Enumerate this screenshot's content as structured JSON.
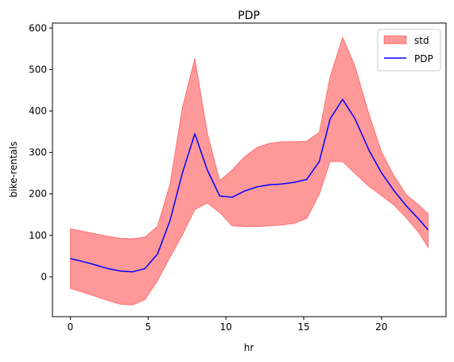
{
  "chart_data": {
    "type": "line",
    "title": "PDP",
    "xlabel": "hr",
    "ylabel": "bike-rentals",
    "xlim": [
      -1.15,
      24.15
    ],
    "ylim": [
      -96,
      612
    ],
    "xticks": [
      0,
      5,
      10,
      15,
      20
    ],
    "yticks": [
      0,
      100,
      200,
      300,
      400,
      500,
      600
    ],
    "grid": false,
    "legend_position": "top-right",
    "legend": [
      {
        "label": "std",
        "kind": "band",
        "color": "#ff0000",
        "alpha": 0.4
      },
      {
        "label": "PDP",
        "kind": "line",
        "color": "#0000ff"
      }
    ],
    "x": [
      0,
      0.8,
      1.6,
      2.4,
      3.2,
      4.0,
      4.8,
      5.6,
      6.4,
      7.2,
      8.0,
      8.8,
      9.6,
      10.4,
      11.2,
      12.0,
      12.8,
      13.6,
      14.4,
      15.2,
      16.0,
      16.7,
      17.5,
      18.3,
      19.2,
      20.0,
      20.8,
      21.6,
      22.4,
      23.0
    ],
    "series": [
      {
        "name": "PDP",
        "color": "#0000ff",
        "values": [
          44,
          37,
          29,
          20,
          14,
          12,
          20,
          55,
          135,
          250,
          345,
          258,
          195,
          192,
          207,
          217,
          222,
          224,
          228,
          235,
          278,
          381,
          428,
          381,
          305,
          251,
          208,
          171,
          139,
          113
        ]
      }
    ],
    "band": {
      "name": "std",
      "color": "#ff0000",
      "upper": [
        116,
        110,
        104,
        98,
        93,
        92,
        96,
        122,
        223,
        408,
        527,
        348,
        232,
        258,
        290,
        312,
        322,
        326,
        326,
        327,
        349,
        483,
        578,
        508,
        392,
        302,
        244,
        198,
        173,
        152
      ],
      "lower": [
        -28,
        -37,
        -47,
        -57,
        -66,
        -68,
        -55,
        -10,
        47,
        101,
        162,
        178,
        155,
        123,
        121,
        121,
        123,
        125,
        129,
        141,
        199,
        278,
        278,
        249,
        218,
        196,
        173,
        142,
        106,
        71
      ]
    }
  }
}
